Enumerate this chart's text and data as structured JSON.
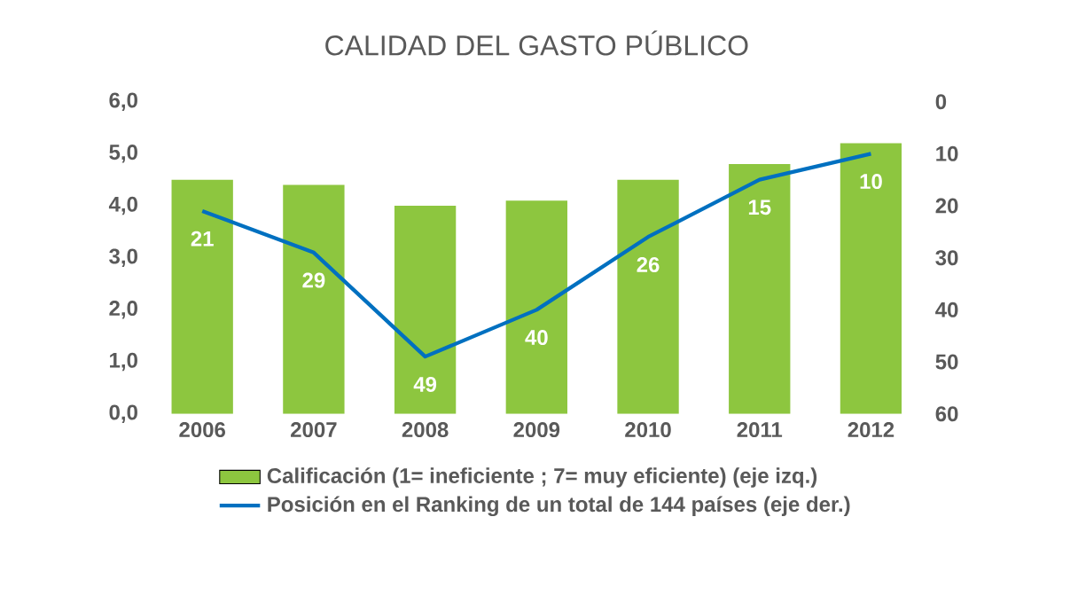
{
  "chart_data": {
    "type": "bar",
    "title": "CALIDAD DEL GASTO PÚBLICO",
    "categories": [
      "2006",
      "2007",
      "2008",
      "2009",
      "2010",
      "2011",
      "2012"
    ],
    "series": [
      {
        "name": "Calificación (1= ineficiente ; 7= muy eficiente) (eje izq.)",
        "color": "#8dc63f",
        "values": [
          4.5,
          4.4,
          4.0,
          4.1,
          4.5,
          4.8,
          5.2
        ]
      },
      {
        "name": "Posición en el Ranking de un total de 144 países (eje der.)",
        "type": "line",
        "axis": "y2",
        "color": "#0070c0",
        "values": [
          21,
          29,
          49,
          40,
          26,
          15,
          10
        ],
        "data_labels": true
      }
    ],
    "ylim": [
      0,
      6
    ],
    "yticks": [
      {
        "value": 0,
        "label": "0,0"
      },
      {
        "value": 1,
        "label": "1,0"
      },
      {
        "value": 2,
        "label": "2,0"
      },
      {
        "value": 3,
        "label": "3,0"
      },
      {
        "value": 4,
        "label": "4,0"
      },
      {
        "value": 5,
        "label": "5,0"
      },
      {
        "value": 6,
        "label": "6,0"
      }
    ],
    "y2lim": [
      60,
      0
    ],
    "y2ticks": [
      0,
      10,
      20,
      30,
      40,
      50,
      60
    ],
    "legend": "bottom",
    "marker": "none",
    "grid": false
  }
}
